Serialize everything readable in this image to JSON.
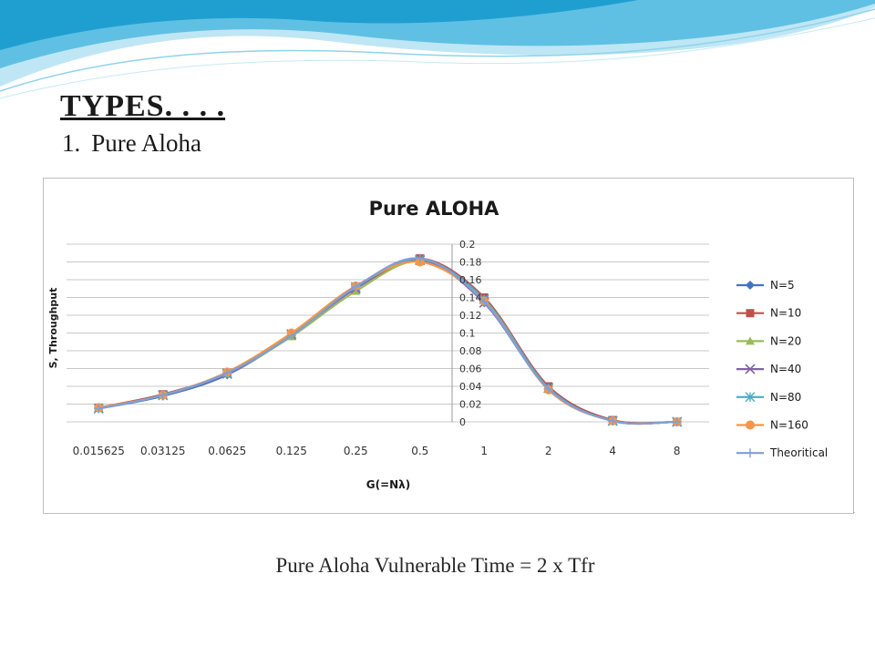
{
  "slide": {
    "heading": "TYPES. . . .",
    "subheading_number": "1.",
    "subheading_text": "Pure Aloha",
    "caption": "Pure Aloha Vulnerable Time = 2 x Tfr",
    "corner_mark": "."
  },
  "colors": {
    "wave_dark": "#1f9fd0",
    "wave_light": "#9fd9ee",
    "series": [
      "#4472c4",
      "#c0504d",
      "#9bbb59",
      "#8064a2",
      "#4bacc6",
      "#f79646",
      "#7f9fd6"
    ]
  },
  "chart_data": {
    "type": "line",
    "title": "Pure ALOHA",
    "xlabel": "G(=Nλ)",
    "ylabel": "S, Throughput",
    "categories": [
      "0.015625",
      "0.03125",
      "0.0625",
      "0.125",
      "0.25",
      "0.5",
      "1",
      "2",
      "4",
      "8"
    ],
    "ylim": [
      0,
      0.2
    ],
    "yticks": [
      "0",
      "0.02",
      "0.04",
      "0.06",
      "0.08",
      "0.1",
      "0.12",
      "0.14",
      "0.16",
      "0.18",
      "0.2"
    ],
    "grid": true,
    "legend_position": "right",
    "series": [
      {
        "name": "N=5",
        "marker": "diamond",
        "values": [
          0.015,
          0.029,
          0.053,
          0.097,
          0.151,
          0.183,
          0.134,
          0.037,
          0.001,
          0.0
        ]
      },
      {
        "name": "N=10",
        "marker": "square",
        "values": [
          0.016,
          0.031,
          0.055,
          0.098,
          0.152,
          0.184,
          0.14,
          0.04,
          0.002,
          0.0
        ]
      },
      {
        "name": "N=20",
        "marker": "triangle",
        "values": [
          0.015,
          0.03,
          0.054,
          0.096,
          0.147,
          0.181,
          0.138,
          0.038,
          0.001,
          0.0
        ]
      },
      {
        "name": "N=40",
        "marker": "x",
        "values": [
          0.015,
          0.03,
          0.054,
          0.098,
          0.15,
          0.182,
          0.134,
          0.038,
          0.001,
          0.0
        ]
      },
      {
        "name": "N=80",
        "marker": "star",
        "values": [
          0.015,
          0.03,
          0.055,
          0.099,
          0.152,
          0.183,
          0.138,
          0.038,
          0.001,
          0.0
        ]
      },
      {
        "name": "N=160",
        "marker": "circle",
        "values": [
          0.016,
          0.03,
          0.056,
          0.1,
          0.153,
          0.18,
          0.136,
          0.036,
          0.001,
          0.0
        ]
      },
      {
        "name": "Theoritical",
        "marker": "plus",
        "values": [
          0.015,
          0.03,
          0.055,
          0.097,
          0.152,
          0.184,
          0.135,
          0.037,
          0.001,
          0.0
        ]
      }
    ]
  }
}
